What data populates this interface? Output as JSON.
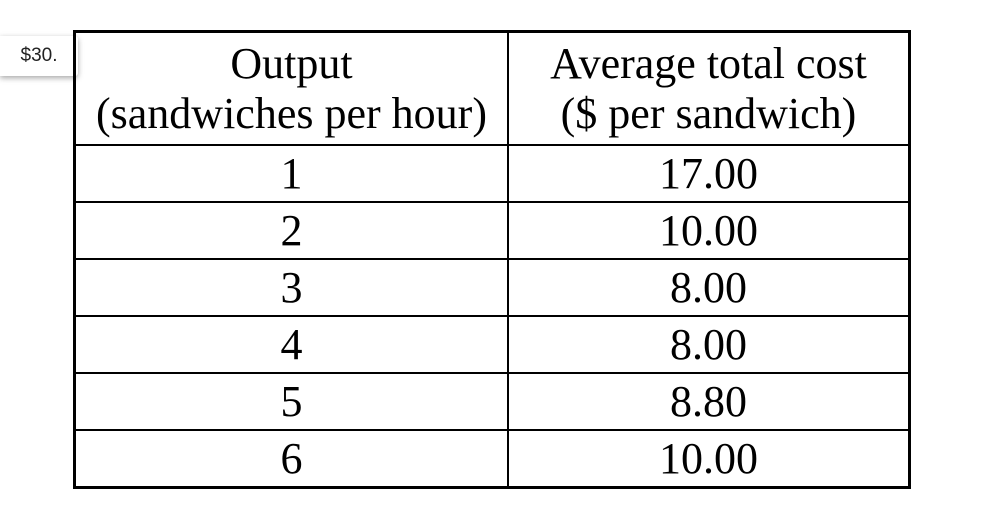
{
  "badge": "$30.",
  "table": {
    "header": [
      [
        "Output",
        "(sandwiches per hour)"
      ],
      [
        "Average total cost",
        "($ per sandwich)"
      ]
    ],
    "rows": [
      [
        "1",
        "17.00"
      ],
      [
        "2",
        "10.00"
      ],
      [
        "3",
        "8.00"
      ],
      [
        "4",
        "8.00"
      ],
      [
        "5",
        "8.80"
      ],
      [
        "6",
        "10.00"
      ]
    ]
  }
}
